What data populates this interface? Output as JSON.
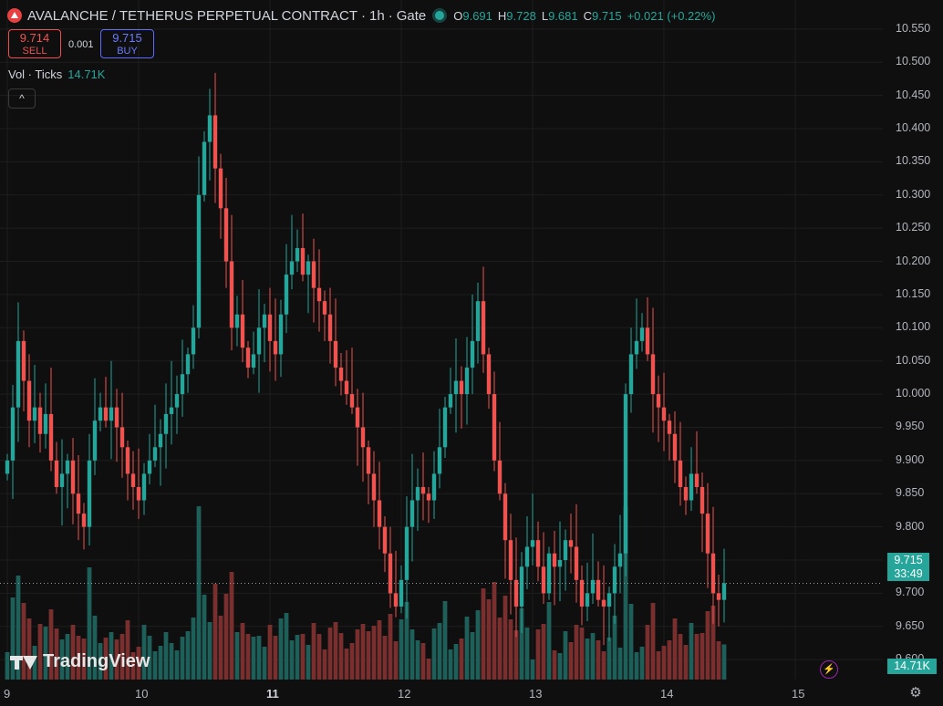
{
  "header": {
    "title": "AVALANCHE / TETHERUS PERPETUAL CONTRACT",
    "interval": "1h",
    "exchange": "Gate",
    "ohlc": [
      {
        "key": "O",
        "value": "9.691"
      },
      {
        "key": "H",
        "value": "9.728"
      },
      {
        "key": "L",
        "value": "9.681"
      },
      {
        "key": "C",
        "value": "9.715"
      }
    ],
    "change": "+0.021 (+0.22%)"
  },
  "trade": {
    "sell_price": "9.714",
    "sell_label": "SELL",
    "spread": "0.001",
    "buy_price": "9.715",
    "buy_label": "BUY"
  },
  "volume_legend": {
    "label": "Vol · Ticks",
    "value": "14.71K"
  },
  "price_tag": {
    "price": "9.715",
    "countdown": "33:49"
  },
  "volume_tag": "14.71K",
  "brand": "TradingView",
  "icons": {
    "logo": "avalanche-logo",
    "live": "live-dot-icon",
    "collapse": "chevron-up-icon",
    "bolt": "bolt-icon",
    "settings": "gear-icon"
  },
  "colors": {
    "up": "#26a69a",
    "down": "#ef5350",
    "vol_up": "#1f5f59",
    "vol_down": "#7a2f2f",
    "background": "#0f0f0f"
  },
  "chart_data": {
    "type": "candlestick",
    "y_ticks": [
      "10.550",
      "10.500",
      "10.450",
      "10.400",
      "10.350",
      "10.300",
      "10.250",
      "10.200",
      "10.150",
      "10.100",
      "10.050",
      "10.000",
      "9.950",
      "9.900",
      "9.850",
      "9.800",
      "9.750",
      "9.700",
      "9.650",
      "9.600"
    ],
    "y_range": [
      9.57,
      10.58
    ],
    "x_ticks": [
      {
        "label": "9",
        "index": 0,
        "bold": false
      },
      {
        "label": "10",
        "index": 24,
        "bold": false
      },
      {
        "label": "11",
        "index": 48,
        "bold": true
      },
      {
        "label": "12",
        "index": 72,
        "bold": false
      },
      {
        "label": "13",
        "index": 96,
        "bold": false
      },
      {
        "label": "14",
        "index": 120,
        "bold": false
      },
      {
        "label": "15",
        "index": 144,
        "bold": false
      }
    ],
    "last_price": 9.715,
    "closes": [
      9.9,
      9.98,
      10.08,
      10.02,
      9.96,
      9.98,
      9.94,
      9.97,
      9.9,
      9.86,
      9.88,
      9.9,
      9.85,
      9.82,
      9.8,
      9.9,
      9.96,
      9.98,
      9.96,
      9.98,
      9.95,
      9.92,
      9.88,
      9.86,
      9.84,
      9.88,
      9.9,
      9.92,
      9.94,
      9.97,
      9.98,
      10.0,
      10.03,
      10.06,
      10.1,
      10.3,
      10.38,
      10.42,
      10.34,
      10.28,
      10.2,
      10.1,
      10.12,
      10.07,
      10.04,
      10.06,
      10.1,
      10.12,
      10.08,
      10.06,
      10.12,
      10.18,
      10.2,
      10.22,
      10.18,
      10.2,
      10.16,
      10.14,
      10.12,
      10.08,
      10.04,
      10.02,
      10.0,
      9.98,
      9.95,
      9.92,
      9.88,
      9.84,
      9.8,
      9.76,
      9.7,
      9.68,
      9.72,
      9.8,
      9.84,
      9.86,
      9.85,
      9.84,
      9.88,
      9.92,
      9.98,
      10.0,
      10.02,
      10.0,
      10.04,
      10.08,
      10.14,
      10.06,
      10.0,
      9.9,
      9.85,
      9.78,
      9.72,
      9.68,
      9.74,
      9.77,
      9.78,
      9.74,
      9.7,
      9.76,
      9.74,
      9.75,
      9.78,
      9.77,
      9.72,
      9.68,
      9.7,
      9.72,
      9.69,
      9.68,
      9.7,
      9.74,
      9.76,
      10.0,
      10.06,
      10.08,
      10.1,
      10.06,
      10.0,
      9.98,
      9.96,
      9.94,
      9.9,
      9.86,
      9.84,
      9.88,
      9.86,
      9.82,
      9.76,
      9.7,
      9.69,
      9.715
    ]
  }
}
